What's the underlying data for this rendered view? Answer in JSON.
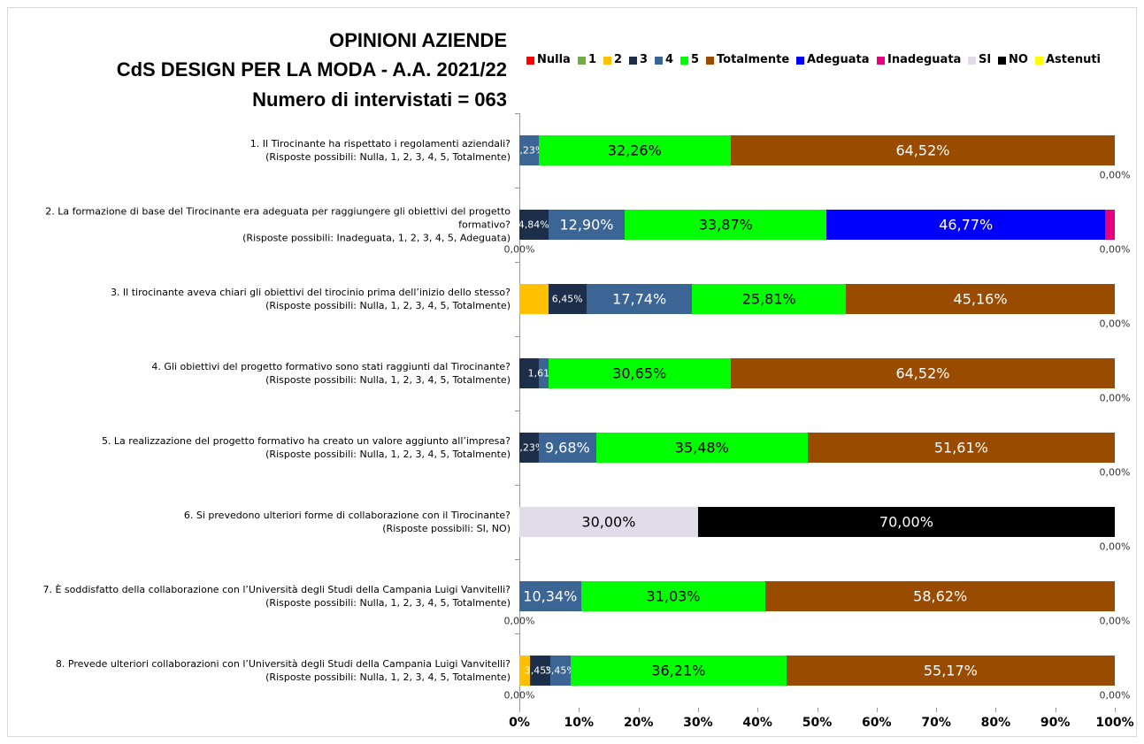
{
  "chart_data": {
    "type": "stacked-barh",
    "title": [
      "OPINIONI AZIENDE",
      "CdS DESIGN PER LA MODA - A.A. 2021/22",
      "Numero di intervistati = 063"
    ],
    "categories": [
      "1. Il Tirocinante ha rispettato i regolamenti aziendali?\n(Risposte possibili: Nulla, 1, 2, 3, 4, 5, Totalmente)",
      "2. La formazione di base del Tirocinante era adeguata per raggiungere gli obiettivi del progetto formativo?\n(Risposte possibili:  Inadeguata, 1, 2, 3, 4, 5, Adeguata)",
      "3. Il tirocinante aveva chiari gli obiettivi del tirocinio prima dell’inizio dello stesso?\n(Risposte possibili: Nulla, 1, 2, 3, 4, 5, Totalmente)",
      "4. Gli obiettivi del progetto formativo sono stati raggiunti dal Tirocinante?\n(Risposte possibili: Nulla, 1, 2, 3, 4, 5, Totalmente)",
      "5. La realizzazione del progetto formativo ha creato un valore aggiunto all’impresa?\n(Risposte possibili: Nulla, 1, 2, 3, 4, 5, Totalmente)",
      "6. Si prevedono ulteriori forme di collaborazione con il Tirocinante?\n(Risposte possibili: SI, NO)",
      "7. È soddisfatto della collaborazione con l’Università degli Studi della Campania Luigi Vanvitelli?\n(Risposte possibili: Nulla, 1, 2, 3, 4, 5, Totalmente)",
      "8. Prevede ulteriori collaborazioni con l’Università degli Studi della Campania Luigi Vanvitelli?\n(Risposte possibili: Nulla, 1, 2, 3, 4, 5, Totalmente)"
    ],
    "series": [
      {
        "name": "Nulla",
        "color": "#ff0000",
        "values": [
          null,
          0,
          null,
          null,
          null,
          null,
          0,
          0
        ],
        "value_labels": [
          null,
          "0,00%",
          null,
          null,
          null,
          null,
          "0,00%",
          "0,00%"
        ]
      },
      {
        "name": "1",
        "color": "#70ad47",
        "values": [
          null,
          null,
          null,
          null,
          null,
          null,
          null,
          null
        ],
        "value_labels": [
          null,
          null,
          null,
          null,
          null,
          null,
          null,
          null
        ]
      },
      {
        "name": "2",
        "color": "#ffc000",
        "values": [
          null,
          null,
          4.84,
          null,
          null,
          null,
          null,
          1.72
        ],
        "value_labels": [
          null,
          null,
          null,
          null,
          null,
          null,
          null,
          null
        ]
      },
      {
        "name": "3",
        "color": "#1c2e4a",
        "values": [
          null,
          4.84,
          6.45,
          3.23,
          3.23,
          null,
          null,
          3.45
        ],
        "value_labels": [
          null,
          "4,84%",
          "6,45%",
          null,
          "3,23%",
          null,
          null,
          "3,45%"
        ]
      },
      {
        "name": "4",
        "color": "#3a6595",
        "values": [
          3.23,
          12.9,
          17.74,
          1.61,
          9.68,
          null,
          10.34,
          3.45
        ],
        "value_labels": [
          "3,23%",
          "12,90%",
          "17,74%",
          "1,61%",
          "9,68%",
          null,
          "10,34%",
          "3,45%"
        ]
      },
      {
        "name": "5",
        "color": "#00ff00",
        "values": [
          32.26,
          33.87,
          25.81,
          30.65,
          35.48,
          null,
          31.03,
          36.21
        ],
        "value_labels": [
          "32,26%",
          "33,87%",
          "25,81%",
          "30,65%",
          "35,48%",
          null,
          "31,03%",
          "36,21%"
        ]
      },
      {
        "name": "Totalmente",
        "color": "#994c00",
        "values": [
          64.52,
          null,
          45.16,
          64.52,
          51.61,
          null,
          58.62,
          55.17
        ],
        "value_labels": [
          "64,52%",
          null,
          "45,16%",
          "64,52%",
          "51,61%",
          null,
          "58,62%",
          "55,17%"
        ]
      },
      {
        "name": "Adeguata",
        "color": "#0000ff",
        "values": [
          null,
          46.77,
          null,
          null,
          null,
          null,
          null,
          null
        ],
        "value_labels": [
          null,
          "46,77%",
          null,
          null,
          null,
          null,
          null,
          null
        ]
      },
      {
        "name": "Inadeguata",
        "color": "#e6007e",
        "values": [
          null,
          1.61,
          null,
          null,
          null,
          null,
          null,
          null
        ],
        "value_labels": [
          null,
          null,
          null,
          null,
          null,
          null,
          null,
          null
        ]
      },
      {
        "name": "SI",
        "color": "#e2dcea",
        "values": [
          null,
          null,
          null,
          null,
          null,
          30.0,
          null,
          null
        ],
        "value_labels": [
          null,
          null,
          null,
          null,
          null,
          "30,00%",
          null,
          null
        ]
      },
      {
        "name": "NO",
        "color": "#000000",
        "values": [
          null,
          null,
          null,
          null,
          null,
          70.0,
          null,
          null
        ],
        "value_labels": [
          null,
          null,
          null,
          null,
          null,
          "70,00%",
          null,
          null
        ]
      },
      {
        "name": "Astenuti",
        "color": "#ffff00",
        "values": [
          0,
          0,
          0,
          0,
          0,
          0,
          0,
          0
        ],
        "value_labels": [
          "0,00%",
          "0,00%",
          "0,00%",
          "0,00%",
          "0,00%",
          "0,00%",
          "0,00%",
          "0,00%"
        ]
      }
    ],
    "xlim": [
      0,
      100
    ],
    "xticks": [
      {
        "value": 0,
        "label": "0%"
      },
      {
        "value": 10,
        "label": "10%"
      },
      {
        "value": 20,
        "label": "20%"
      },
      {
        "value": 30,
        "label": "30%"
      },
      {
        "value": 40,
        "label": "40%"
      },
      {
        "value": 50,
        "label": "50%"
      },
      {
        "value": 60,
        "label": "60%"
      },
      {
        "value": 70,
        "label": "70%"
      },
      {
        "value": 80,
        "label": "80%"
      },
      {
        "value": 90,
        "label": "90%"
      },
      {
        "value": 100,
        "label": "100%"
      }
    ]
  }
}
